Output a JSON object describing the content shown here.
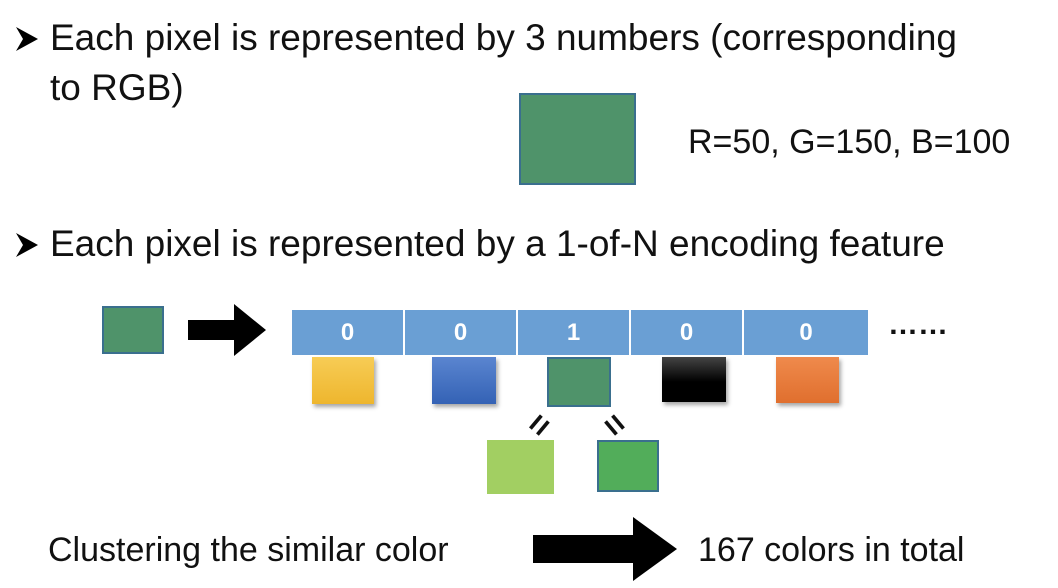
{
  "bullet1": {
    "line1": "Each pixel is represented by 3 numbers (corresponding",
    "line2": "to RGB)"
  },
  "rgb_label": "R=50, G=150, B=100",
  "bullet2": {
    "text": "Each pixel is represented by a 1-of-N encoding feature"
  },
  "vector": {
    "cells": [
      "0",
      "0",
      "1",
      "0",
      "0"
    ],
    "ellipsis": "……"
  },
  "equals_mark": "=",
  "cluster_label": "Clustering the similar color",
  "total_label": "167 colors in total",
  "colors": {
    "pixel": "#4f936a",
    "vector_cell": "#6a9fd4",
    "palette": [
      "#f5c242",
      "#4472c4",
      "#4f936a",
      "#000000",
      "#e8793a"
    ],
    "light_green": "#a2cf62",
    "medium_green": "#52ad5a"
  },
  "icons": {
    "bullet": "arrow-bullet-icon",
    "arrow": "right-arrow-icon"
  }
}
